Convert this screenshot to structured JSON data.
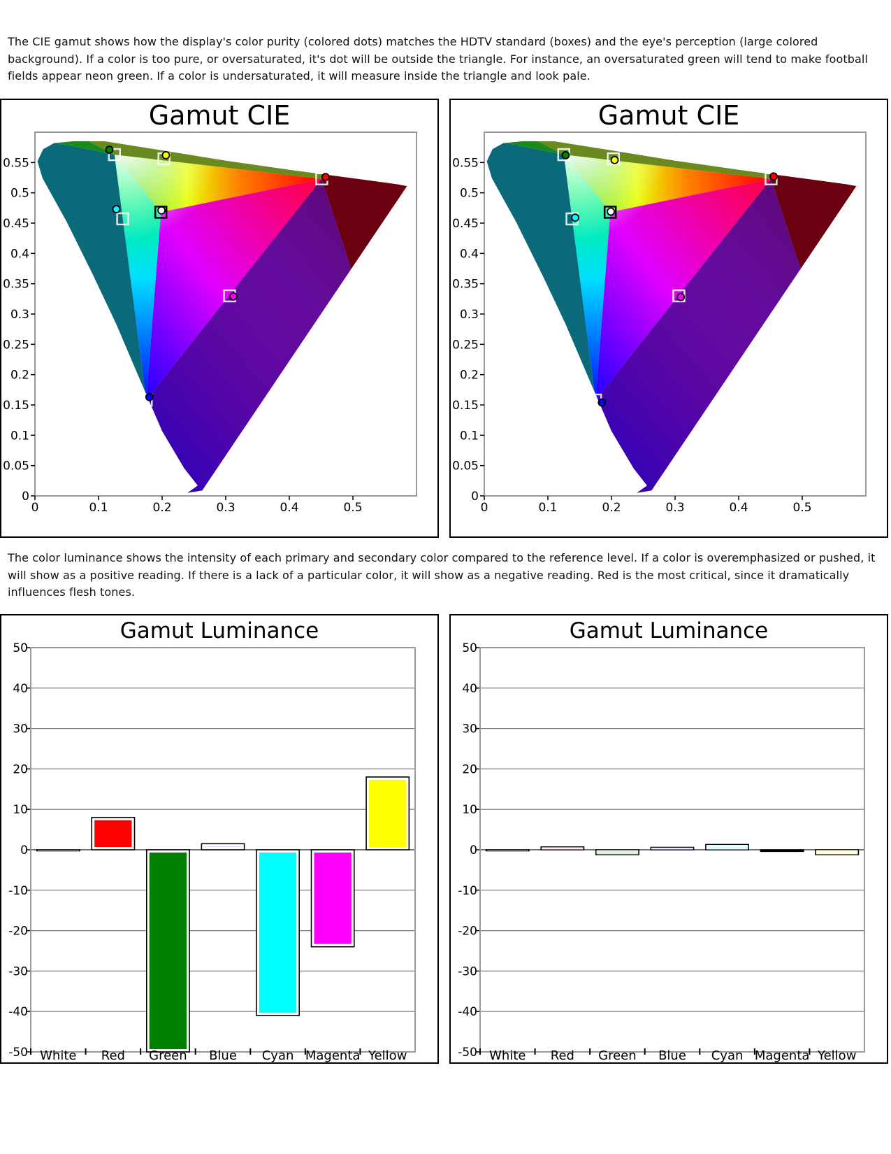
{
  "intro_text": "The CIE gamut shows how the display's color purity (colored dots) matches the HDTV standard (boxes) and the eye's perception (large colored background). If a color is too pure, or oversaturated, it's dot will be outside the triangle. For instance, an oversaturated green will tend to make football fields appear neon green. If a color is undersaturated, it will measure inside the triangle and look pale.",
  "lum_text": "The color luminance shows the intensity of each primary and secondary color compared to the reference level. If a color is overemphasized or pushed, it will show as a positive reading. If there is a lack of a particular color, it will show as a negative reading. Red is the most critical, since it dramatically influences flesh tones.",
  "chart_data": [
    {
      "type": "scatter",
      "title": "Gamut CIE",
      "xlabel": "",
      "ylabel": "",
      "xlim": [
        0,
        0.6
      ],
      "ylim": [
        0,
        0.6
      ],
      "x_ticks": [
        "0",
        "0.1",
        "0.2",
        "0.3",
        "0.4",
        "0.5"
      ],
      "y_ticks": [
        "0",
        "0.05",
        "0.1",
        "0.15",
        "0.2",
        "0.25",
        "0.3",
        "0.35",
        "0.4",
        "0.45",
        "0.5",
        "0.55"
      ],
      "grid": false,
      "reference_boxes": [
        {
          "name": "White",
          "u": 0.198,
          "v": 0.468,
          "color": "#ffffff"
        },
        {
          "name": "Red",
          "u": 0.451,
          "v": 0.523,
          "color": "#ff0000"
        },
        {
          "name": "Green",
          "u": 0.125,
          "v": 0.563,
          "color": "#00c000"
        },
        {
          "name": "Blue",
          "u": 0.175,
          "v": 0.158,
          "color": "#0000ff"
        },
        {
          "name": "Cyan",
          "u": 0.138,
          "v": 0.457,
          "color": "#00ffff"
        },
        {
          "name": "Magenta",
          "u": 0.306,
          "v": 0.33,
          "color": "#ff00ff"
        },
        {
          "name": "Yellow",
          "u": 0.203,
          "v": 0.556,
          "color": "#ffff00"
        }
      ],
      "measured_points": [
        {
          "name": "White",
          "u": 0.199,
          "v": 0.471,
          "color": "#ffffff"
        },
        {
          "name": "Red",
          "u": 0.457,
          "v": 0.526,
          "color": "#ff0000"
        },
        {
          "name": "Green",
          "u": 0.117,
          "v": 0.571,
          "color": "#008000"
        },
        {
          "name": "Blue",
          "u": 0.18,
          "v": 0.163,
          "color": "#0000ff"
        },
        {
          "name": "Cyan",
          "u": 0.128,
          "v": 0.473,
          "color": "#00ffff"
        },
        {
          "name": "Magenta",
          "u": 0.312,
          "v": 0.329,
          "color": "#ff00ff"
        },
        {
          "name": "Yellow",
          "u": 0.206,
          "v": 0.562,
          "color": "#ffff00"
        }
      ]
    },
    {
      "type": "scatter",
      "title": "Gamut CIE",
      "xlabel": "",
      "ylabel": "",
      "xlim": [
        0,
        0.6
      ],
      "ylim": [
        0,
        0.6
      ],
      "x_ticks": [
        "0",
        "0.1",
        "0.2",
        "0.3",
        "0.4",
        "0.5"
      ],
      "y_ticks": [
        "0",
        "0.05",
        "0.1",
        "0.15",
        "0.2",
        "0.25",
        "0.3",
        "0.35",
        "0.4",
        "0.45",
        "0.5",
        "0.55"
      ],
      "grid": false,
      "reference_boxes": [
        {
          "name": "White",
          "u": 0.198,
          "v": 0.468,
          "color": "#ffffff"
        },
        {
          "name": "Red",
          "u": 0.451,
          "v": 0.523,
          "color": "#ff0000"
        },
        {
          "name": "Green",
          "u": 0.125,
          "v": 0.563,
          "color": "#00c000"
        },
        {
          "name": "Blue",
          "u": 0.175,
          "v": 0.158,
          "color": "#0000ff"
        },
        {
          "name": "Cyan",
          "u": 0.138,
          "v": 0.457,
          "color": "#00ffff"
        },
        {
          "name": "Magenta",
          "u": 0.306,
          "v": 0.33,
          "color": "#ff00ff"
        },
        {
          "name": "Yellow",
          "u": 0.203,
          "v": 0.556,
          "color": "#ffff00"
        }
      ],
      "measured_points": [
        {
          "name": "White",
          "u": 0.199,
          "v": 0.469,
          "color": "#ffffff"
        },
        {
          "name": "Red",
          "u": 0.455,
          "v": 0.527,
          "color": "#ff0000"
        },
        {
          "name": "Green",
          "u": 0.128,
          "v": 0.562,
          "color": "#008000"
        },
        {
          "name": "Blue",
          "u": 0.185,
          "v": 0.154,
          "color": "#0000ff"
        },
        {
          "name": "Cyan",
          "u": 0.143,
          "v": 0.459,
          "color": "#00ffff"
        },
        {
          "name": "Magenta",
          "u": 0.309,
          "v": 0.328,
          "color": "#ff00ff"
        },
        {
          "name": "Yellow",
          "u": 0.205,
          "v": 0.554,
          "color": "#ffff00"
        }
      ]
    },
    {
      "type": "bar",
      "title": "Gamut Luminance",
      "xlabel": "",
      "ylabel": "",
      "ylim": [
        -50,
        50
      ],
      "y_ticks": [
        "-50",
        "-40",
        "-30",
        "-20",
        "-10",
        "0",
        "10",
        "20",
        "30",
        "40",
        "50"
      ],
      "grid": true,
      "categories": [
        "White",
        "Red",
        "Green",
        "Blue",
        "Cyan",
        "Magenta",
        "Yellow"
      ],
      "values": [
        0,
        8,
        -50,
        1.5,
        -41,
        -24,
        18
      ],
      "colors": [
        "#ffffff",
        "#ff0000",
        "#008000",
        "#c8c8ff",
        "#00ffff",
        "#ff00ff",
        "#ffff00"
      ]
    },
    {
      "type": "bar",
      "title": "Gamut Luminance",
      "xlabel": "",
      "ylabel": "",
      "ylim": [
        -50,
        50
      ],
      "y_ticks": [
        "-50",
        "-40",
        "-30",
        "-20",
        "-10",
        "0",
        "10",
        "20",
        "30",
        "40",
        "50"
      ],
      "grid": true,
      "categories": [
        "White",
        "Red",
        "Green",
        "Blue",
        "Cyan",
        "Magenta",
        "Yellow"
      ],
      "values": [
        0,
        0.7,
        -1.2,
        0.6,
        1.3,
        -0.4,
        -1.2
      ],
      "colors": [
        "#ffffff",
        "#ffe8e8",
        "#e0f0e0",
        "#e8e8ff",
        "#e0ffff",
        "#000000",
        "#ffffe0"
      ]
    }
  ]
}
